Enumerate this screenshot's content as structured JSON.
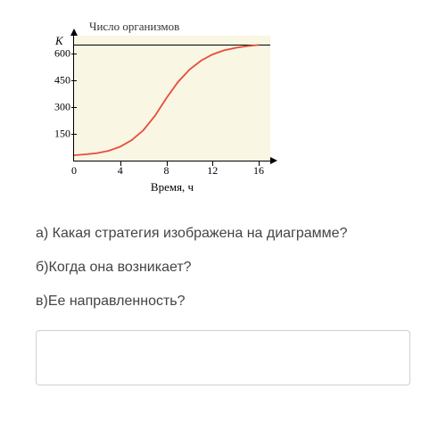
{
  "chart": {
    "type": "line",
    "y_title": "Число организмов",
    "x_title": "Время, ч",
    "k_label": "K",
    "k_value": 650,
    "x_values": [
      0,
      1,
      2,
      3,
      4,
      5,
      6,
      7,
      8,
      9,
      10,
      11,
      12,
      13,
      14,
      15,
      16
    ],
    "y_values": [
      30,
      35,
      42,
      55,
      78,
      115,
      170,
      250,
      350,
      440,
      510,
      560,
      595,
      618,
      632,
      642,
      648
    ],
    "x_ticks": [
      0,
      4,
      8,
      12,
      16
    ],
    "y_ticks": [
      150,
      300,
      450,
      600
    ],
    "xlim": [
      0,
      17
    ],
    "ylim": [
      0,
      700
    ],
    "background_color": "#f9f6e3",
    "curve_color": "#e74c3c",
    "curve_width": 1.8,
    "axis_color": "#000000",
    "k_line_color": "#000000",
    "title_fontsize": 13,
    "tick_fontsize": 12
  },
  "questions": {
    "a": "а) Какая стратегия изображена на диаграмме?",
    "b": "б)Когда она возникает?",
    "v": "в)Ее направленность?"
  }
}
